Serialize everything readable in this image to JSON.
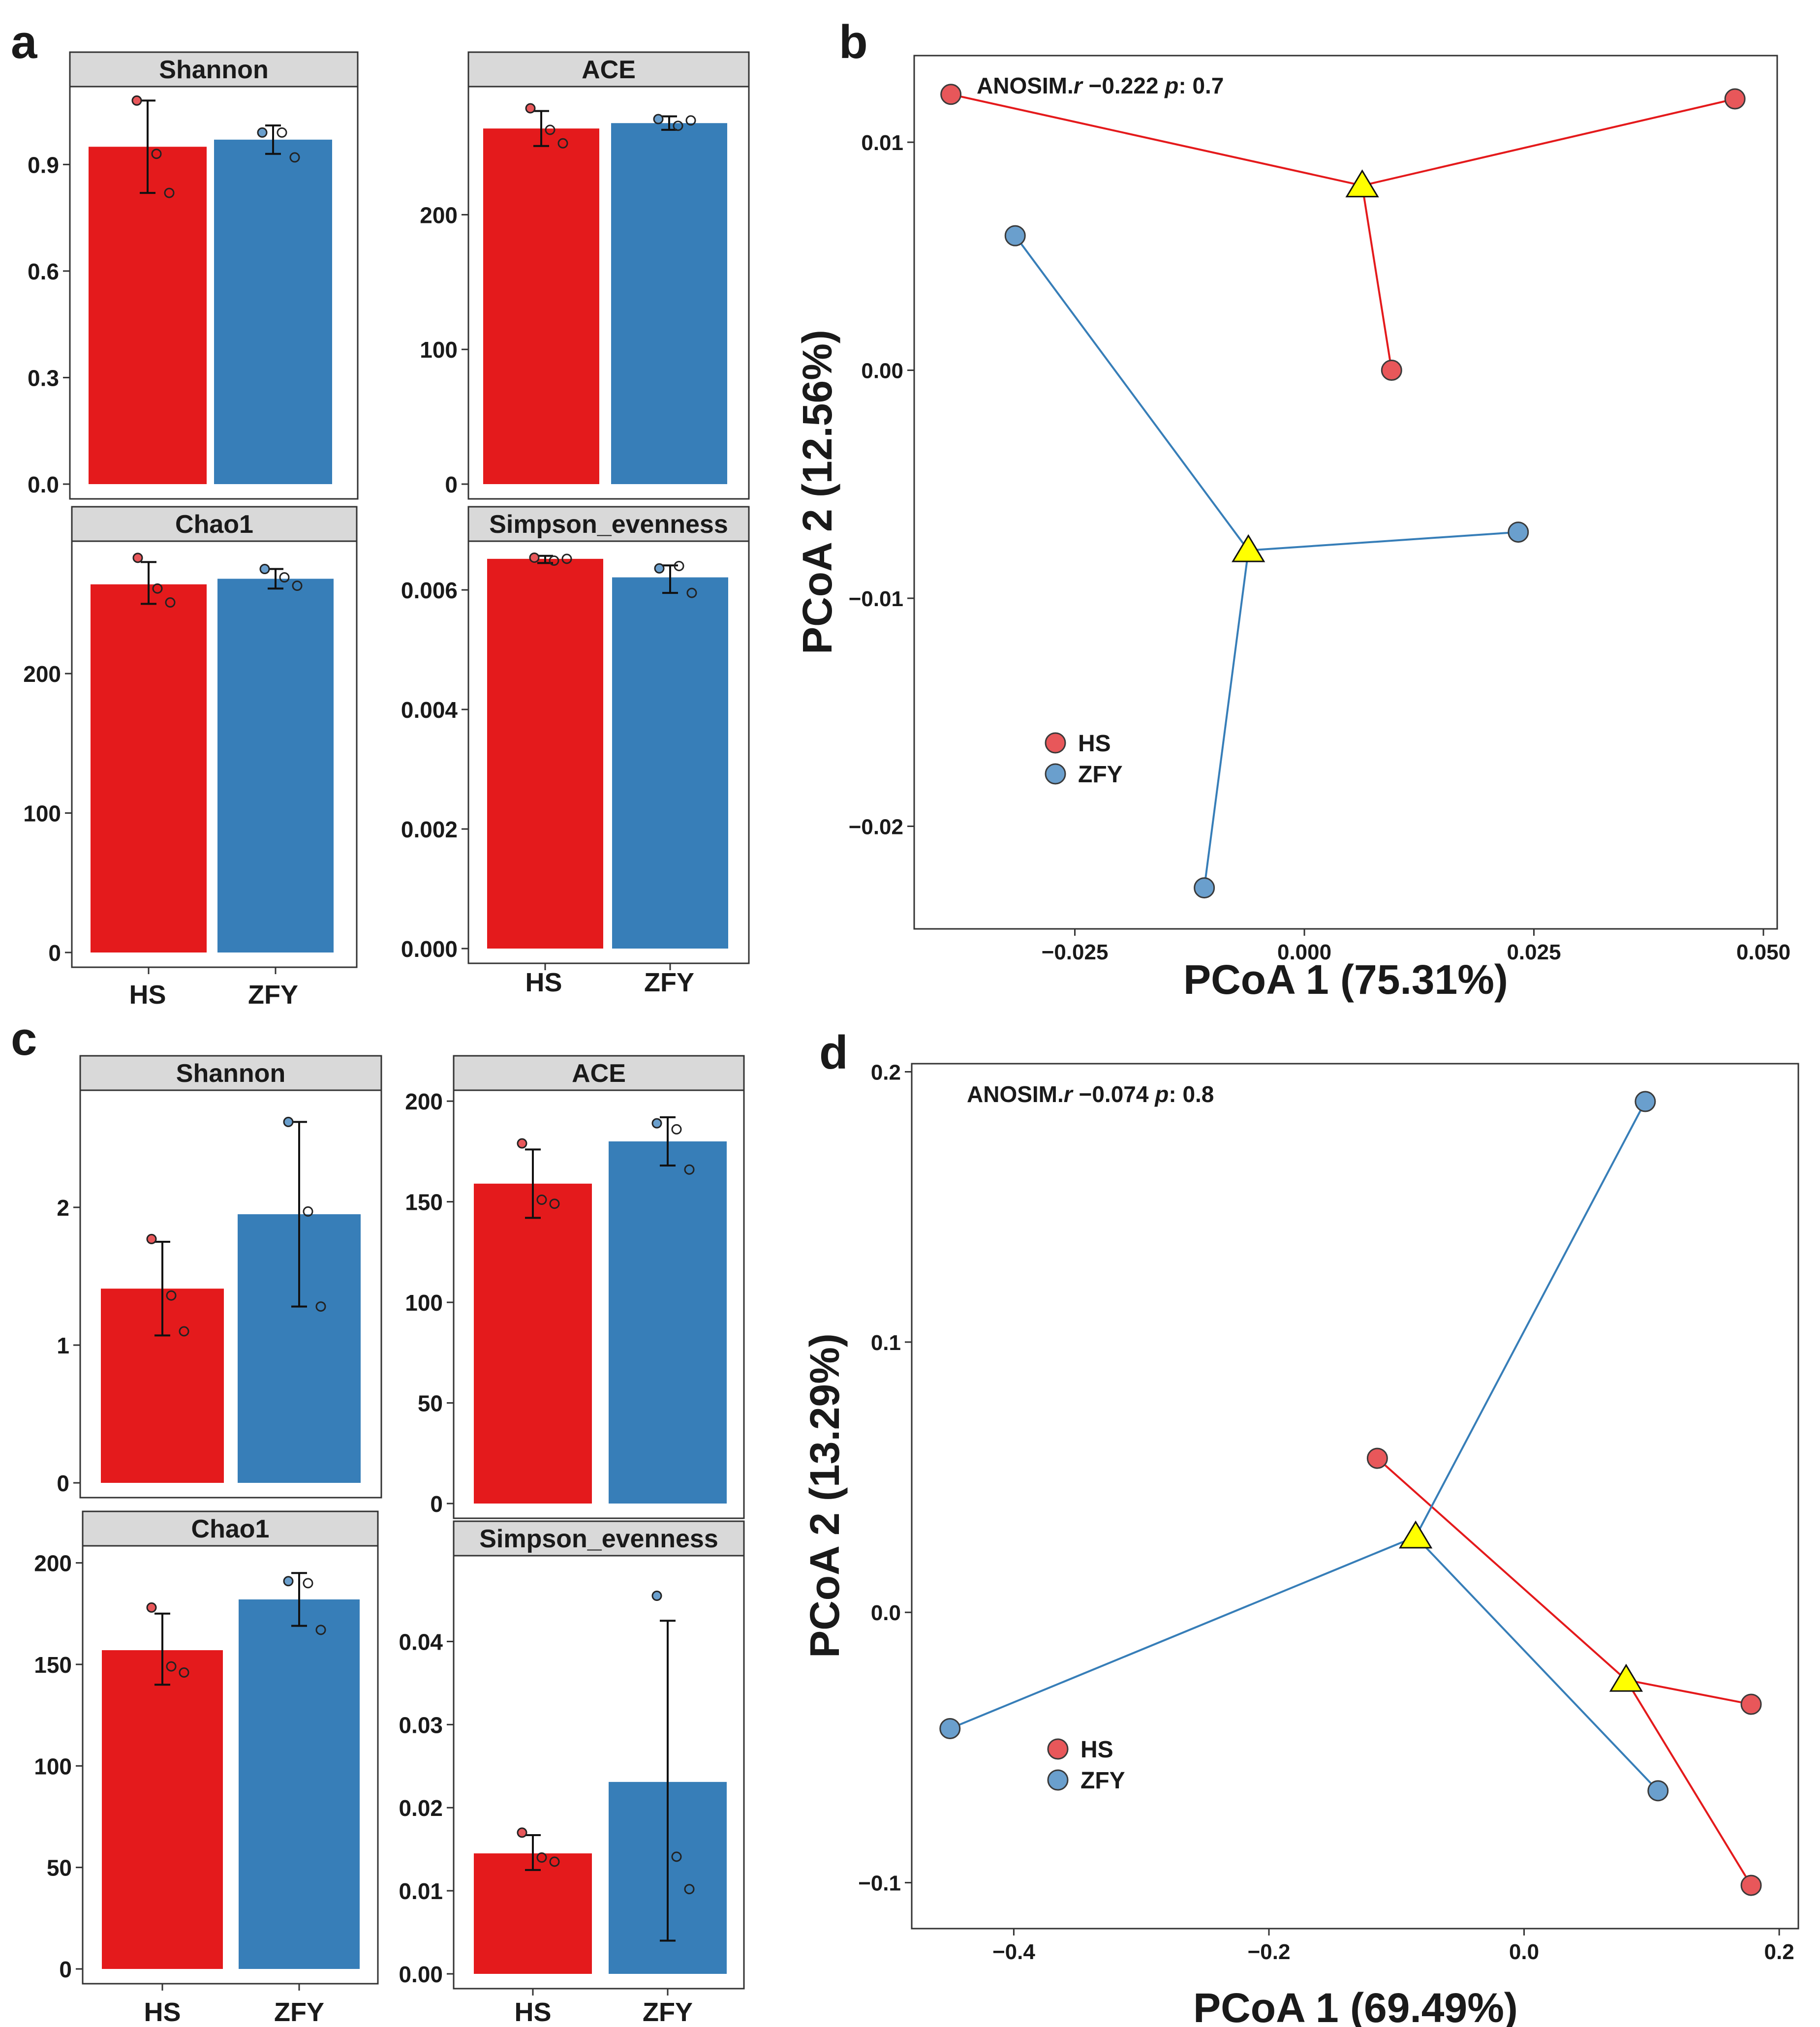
{
  "colors": {
    "HS": "#e41a1c",
    "ZFY": "#377eb8",
    "HS_point": "#e8575a",
    "ZFY_point": "#6a9fcd",
    "centroid": "#ffff00",
    "strip": "#d9d9d9"
  },
  "chart_data": [
    {
      "id": "panel-a",
      "label": "a",
      "type": "bar",
      "layout": "facet-2x2",
      "categories": [
        "HS",
        "ZFY"
      ],
      "facets": [
        {
          "name": "Shannon",
          "values": [
            0.95,
            0.97
          ],
          "err_low": [
            0.82,
            0.93
          ],
          "err_high": [
            1.08,
            1.01
          ],
          "points": [
            [
              1.08,
              0.93,
              0.82
            ],
            [
              0.99,
              0.99,
              0.92
            ]
          ],
          "ylim": [
            0,
            1.1
          ],
          "ticks": [
            0,
            0.3,
            0.6,
            0.9
          ],
          "tick_labels": [
            "0.0",
            "0.3",
            "0.6",
            "0.9"
          ]
        },
        {
          "name": "ACE",
          "values": [
            264,
            268
          ],
          "err_low": [
            251,
            263
          ],
          "err_high": [
            277,
            273
          ],
          "points": [
            [
              279,
              263,
              253
            ],
            [
              271,
              266,
              270
            ]
          ],
          "ylim": [
            0,
            290
          ],
          "ticks": [
            0,
            100,
            200
          ],
          "tick_labels": [
            "0",
            "100",
            "200"
          ]
        },
        {
          "name": "Chao1",
          "values": [
            264,
            268
          ],
          "err_low": [
            250,
            261
          ],
          "err_high": [
            280,
            275
          ],
          "points": [
            [
              283,
              261,
              251
            ],
            [
              275,
              269,
              263
            ]
          ],
          "ylim": [
            0,
            290
          ],
          "ticks": [
            0,
            100,
            200
          ],
          "tick_labels": [
            "0",
            "100",
            "200"
          ]
        },
        {
          "name": "Simpson_evenness",
          "values": [
            0.00652,
            0.00621
          ],
          "err_low": [
            0.00645,
            0.00595
          ],
          "err_high": [
            0.00657,
            0.00641
          ],
          "points": [
            [
              0.00654,
              0.00649,
              0.00652
            ],
            [
              0.00636,
              0.0064,
              0.00595
            ]
          ],
          "ylim": [
            0,
            0.0067
          ],
          "ticks": [
            0,
            0.002,
            0.004,
            0.006
          ],
          "tick_labels": [
            "0.000",
            "0.002",
            "0.004",
            "0.006"
          ]
        }
      ]
    },
    {
      "id": "panel-b",
      "label": "b",
      "type": "scatter",
      "annotation": {
        "prefix": "ANOSIM.",
        "r_symbol": "r",
        "r_value": " −0.222 ",
        "p_symbol": "p",
        "p_value": ": 0.7"
      },
      "xlabel": "PCoA 1 (75.31%)",
      "ylabel": "PCoA 2 (12.56%)",
      "xlim": [
        -0.0425,
        0.0515
      ],
      "ylim": [
        -0.0245,
        0.0138
      ],
      "xticks": [
        -0.025,
        0,
        0.025,
        0.05
      ],
      "xtick_labels": [
        "−0.025",
        "0.000",
        "0.025",
        "0.050"
      ],
      "yticks": [
        -0.02,
        -0.01,
        0,
        0.01
      ],
      "ytick_labels": [
        "−0.02",
        "−0.01",
        "0.00",
        "0.01"
      ],
      "legend": {
        "position": "lower-left",
        "items": [
          "HS",
          "ZFY"
        ]
      },
      "groups": [
        {
          "name": "HS",
          "centroid": [
            0.0063,
            0.0081
          ],
          "points": [
            [
              -0.0385,
              0.0121
            ],
            [
              0.0469,
              0.0119
            ],
            [
              0.0095,
              0.0
            ]
          ]
        },
        {
          "name": "ZFY",
          "centroid": [
            -0.0061,
            -0.0079
          ],
          "points": [
            [
              -0.0315,
              0.0059
            ],
            [
              0.0233,
              -0.0071
            ],
            [
              -0.0109,
              -0.0227
            ]
          ]
        }
      ]
    },
    {
      "id": "panel-c",
      "label": "c",
      "type": "bar",
      "layout": "facet-2x2",
      "categories": [
        "HS",
        "ZFY"
      ],
      "facets": [
        {
          "name": "Shannon",
          "values": [
            1.41,
            1.95
          ],
          "err_low": [
            1.07,
            1.28
          ],
          "err_high": [
            1.75,
            2.62
          ],
          "points": [
            [
              1.77,
              1.36,
              1.1
            ],
            [
              2.62,
              1.97,
              1.28
            ]
          ],
          "ylim": [
            0,
            2.8
          ],
          "ticks": [
            0,
            1,
            2
          ],
          "tick_labels": [
            "0",
            "1",
            "2"
          ]
        },
        {
          "name": "ACE",
          "values": [
            159,
            180
          ],
          "err_low": [
            142,
            168
          ],
          "err_high": [
            176,
            192
          ],
          "points": [
            [
              179,
              151,
              149
            ],
            [
              189,
              186,
              166
            ]
          ],
          "ylim": [
            0,
            202
          ],
          "ticks": [
            0,
            50,
            100,
            150,
            200
          ],
          "tick_labels": [
            "0",
            "50",
            "100",
            "150",
            "200"
          ]
        },
        {
          "name": "Chao1",
          "values": [
            157,
            182
          ],
          "err_low": [
            140,
            169
          ],
          "err_high": [
            175,
            195
          ],
          "points": [
            [
              178,
              149,
              146
            ],
            [
              191,
              190,
              167
            ]
          ],
          "ylim": [
            0,
            205
          ],
          "ticks": [
            0,
            50,
            100,
            150,
            200
          ],
          "tick_labels": [
            "0",
            "50",
            "100",
            "150",
            "200"
          ]
        },
        {
          "name": "Simpson_evenness",
          "values": [
            0.0145,
            0.0231
          ],
          "err_low": [
            0.0125,
            0.004
          ],
          "err_high": [
            0.0167,
            0.0425
          ],
          "points": [
            [
              0.017,
              0.014,
              0.0135
            ],
            [
              0.0455,
              0.0141,
              0.0102
            ]
          ],
          "ylim": [
            0,
            0.0495
          ],
          "ticks": [
            0,
            0.01,
            0.02,
            0.03,
            0.04
          ],
          "tick_labels": [
            "0.00",
            "0.01",
            "0.02",
            "0.03",
            "0.04"
          ]
        }
      ]
    },
    {
      "id": "panel-d",
      "label": "d",
      "type": "scatter",
      "annotation": {
        "prefix": "ANOSIM.",
        "r_symbol": "r",
        "r_value": " −0.074 ",
        "p_symbol": "p",
        "p_value": ": 0.8"
      },
      "xlabel": "PCoA 1 (69.49%)",
      "ylabel": "PCoA 2 (13.29%)",
      "xlim": [
        -0.48,
        0.215
      ],
      "ylim": [
        -0.117,
        0.203
      ],
      "xticks": [
        -0.4,
        -0.2,
        0,
        0.2
      ],
      "xtick_labels": [
        "−0.4",
        "−0.2",
        "0.0",
        "0.2"
      ],
      "yticks": [
        -0.1,
        0,
        0.1,
        0.2
      ],
      "ytick_labels": [
        "−0.1",
        "0.0",
        "0.1",
        "0.2"
      ],
      "legend": {
        "position": "lower-left",
        "items": [
          "HS",
          "ZFY"
        ]
      },
      "groups": [
        {
          "name": "HS",
          "centroid": [
            0.08,
            -0.025
          ],
          "points": [
            [
              -0.115,
              0.057
            ],
            [
              0.178,
              -0.034
            ],
            [
              0.178,
              -0.101
            ]
          ]
        },
        {
          "name": "ZFY",
          "centroid": [
            -0.085,
            0.028
          ],
          "points": [
            [
              0.095,
              0.189
            ],
            [
              -0.45,
              -0.043
            ],
            [
              0.105,
              -0.066
            ]
          ]
        }
      ]
    }
  ]
}
